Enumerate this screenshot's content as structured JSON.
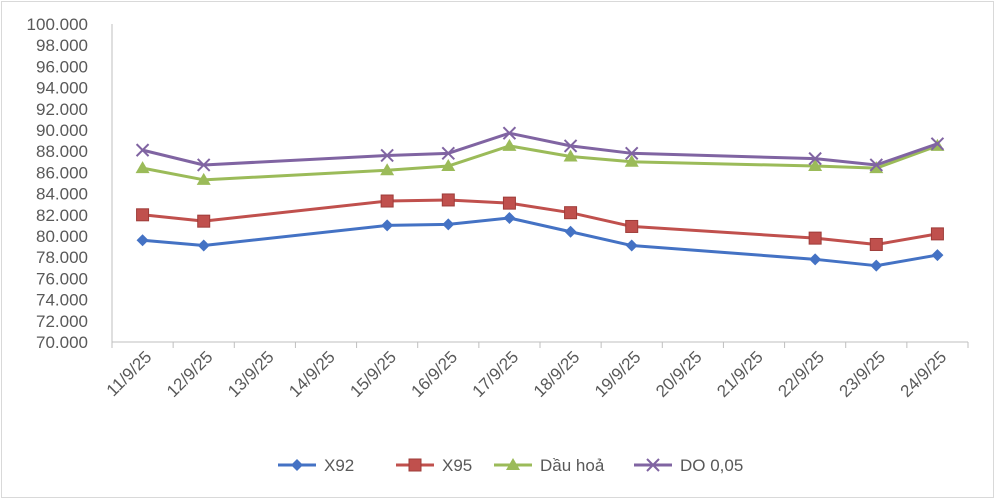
{
  "chart_data": {
    "type": "line",
    "title": "",
    "xlabel": "",
    "ylabel": "",
    "categories": [
      "11/9/25",
      "12/9/25",
      "13/9/25",
      "14/9/25",
      "15/9/25",
      "16/9/25",
      "17/9/25",
      "18/9/25",
      "19/9/25",
      "20/9/25",
      "21/9/25",
      "22/9/25",
      "23/9/25",
      "24/9/25"
    ],
    "ylim": [
      70000,
      100000
    ],
    "ytick_step": 2000,
    "ytick_labels": [
      "70.000",
      "72.000",
      "74.000",
      "76.000",
      "78.000",
      "80.000",
      "82.000",
      "84.000",
      "86.000",
      "88.000",
      "90.000",
      "92.000",
      "94.000",
      "96.000",
      "98.000",
      "100.000"
    ],
    "grid": false,
    "legend_position": "bottom",
    "series": [
      {
        "name": "X92",
        "color": "#4472c4",
        "marker": "diamond",
        "values": [
          79600,
          79100,
          null,
          null,
          81000,
          81100,
          81700,
          80400,
          79100,
          null,
          null,
          77800,
          77200,
          78200
        ]
      },
      {
        "name": "X95",
        "color": "#c0504d",
        "marker": "square",
        "values": [
          82000,
          81400,
          null,
          null,
          83300,
          83400,
          83100,
          82200,
          80900,
          null,
          null,
          79800,
          79200,
          80200
        ]
      },
      {
        "name": "Dầu hoả",
        "color": "#9bbb59",
        "marker": "triangle",
        "values": [
          86400,
          85300,
          null,
          null,
          86200,
          86600,
          88500,
          87500,
          87000,
          null,
          null,
          86600,
          86400,
          88500
        ]
      },
      {
        "name": "DO 0,05",
        "color": "#8064a2",
        "marker": "x",
        "values": [
          88100,
          86700,
          null,
          null,
          87600,
          87800,
          89700,
          88500,
          87800,
          null,
          null,
          87300,
          86700,
          88700
        ]
      }
    ]
  }
}
